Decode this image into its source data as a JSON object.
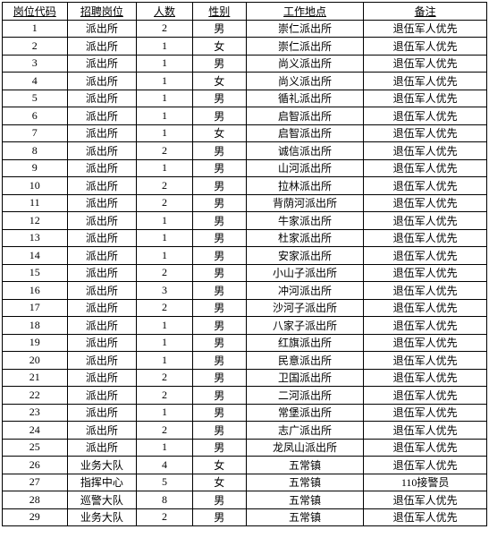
{
  "table": {
    "columns": [
      "岗位代码",
      "招聘岗位",
      "人数",
      "性别",
      "工作地点",
      "备注"
    ],
    "rows": [
      [
        "1",
        "派出所",
        "2",
        "男",
        "崇仁派出所",
        "退伍军人优先"
      ],
      [
        "2",
        "派出所",
        "1",
        "女",
        "崇仁派出所",
        "退伍军人优先"
      ],
      [
        "3",
        "派出所",
        "1",
        "男",
        "尚义派出所",
        "退伍军人优先"
      ],
      [
        "4",
        "派出所",
        "1",
        "女",
        "尚义派出所",
        "退伍军人优先"
      ],
      [
        "5",
        "派出所",
        "1",
        "男",
        "循礼派出所",
        "退伍军人优先"
      ],
      [
        "6",
        "派出所",
        "1",
        "男",
        "启智派出所",
        "退伍军人优先"
      ],
      [
        "7",
        "派出所",
        "1",
        "女",
        "启智派出所",
        "退伍军人优先"
      ],
      [
        "8",
        "派出所",
        "2",
        "男",
        "诚信派出所",
        "退伍军人优先"
      ],
      [
        "9",
        "派出所",
        "1",
        "男",
        "山河派出所",
        "退伍军人优先"
      ],
      [
        "10",
        "派出所",
        "2",
        "男",
        "拉林派出所",
        "退伍军人优先"
      ],
      [
        "11",
        "派出所",
        "2",
        "男",
        "背荫河派出所",
        "退伍军人优先"
      ],
      [
        "12",
        "派出所",
        "1",
        "男",
        "牛家派出所",
        "退伍军人优先"
      ],
      [
        "13",
        "派出所",
        "1",
        "男",
        "杜家派出所",
        "退伍军人优先"
      ],
      [
        "14",
        "派出所",
        "1",
        "男",
        "安家派出所",
        "退伍军人优先"
      ],
      [
        "15",
        "派出所",
        "2",
        "男",
        "小山子派出所",
        "退伍军人优先"
      ],
      [
        "16",
        "派出所",
        "3",
        "男",
        "冲河派出所",
        "退伍军人优先"
      ],
      [
        "17",
        "派出所",
        "2",
        "男",
        "沙河子派出所",
        "退伍军人优先"
      ],
      [
        "18",
        "派出所",
        "1",
        "男",
        "八家子派出所",
        "退伍军人优先"
      ],
      [
        "19",
        "派出所",
        "1",
        "男",
        "红旗派出所",
        "退伍军人优先"
      ],
      [
        "20",
        "派出所",
        "1",
        "男",
        "民意派出所",
        "退伍军人优先"
      ],
      [
        "21",
        "派出所",
        "2",
        "男",
        "卫国派出所",
        "退伍军人优先"
      ],
      [
        "22",
        "派出所",
        "2",
        "男",
        "二河派出所",
        "退伍军人优先"
      ],
      [
        "23",
        "派出所",
        "1",
        "男",
        "常堡派出所",
        "退伍军人优先"
      ],
      [
        "24",
        "派出所",
        "2",
        "男",
        "志广派出所",
        "退伍军人优先"
      ],
      [
        "25",
        "派出所",
        "1",
        "男",
        "龙凤山派出所",
        "退伍军人优先"
      ],
      [
        "26",
        "业务大队",
        "4",
        "女",
        "五常镇",
        "退伍军人优先"
      ],
      [
        "27",
        "指挥中心",
        "5",
        "女",
        "五常镇",
        "110接警员"
      ],
      [
        "28",
        "巡警大队",
        "8",
        "男",
        "五常镇",
        "退伍军人优先"
      ],
      [
        "29",
        "业务大队",
        "2",
        "男",
        "五常镇",
        "退伍军人优先"
      ]
    ],
    "column_classes": [
      "col-code",
      "col-position",
      "col-count",
      "col-gender",
      "col-location",
      "col-note"
    ],
    "border_color": "#000000",
    "background_color": "#ffffff",
    "font_size": 12,
    "row_height": 19.5
  }
}
